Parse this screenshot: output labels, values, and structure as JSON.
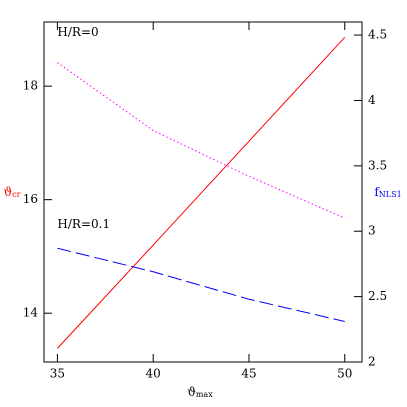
{
  "chart_data": {
    "type": "line",
    "x": [
      35,
      40,
      45,
      50
    ],
    "xlim": [
      34.3,
      50.9
    ],
    "xticks": [
      35,
      40,
      45,
      50
    ],
    "ylim": [
      13.14,
      19.13
    ],
    "yticks": [
      14,
      16,
      18
    ],
    "y2lim": [
      2.0,
      4.6
    ],
    "y2ticks": [
      2,
      2.5,
      3,
      3.5,
      4,
      4.5
    ],
    "xlabel": {
      "symbol": "ϑ",
      "subscript": "max"
    },
    "ylabel": {
      "symbol": "ϑ",
      "subscript": "cr",
      "color": "#ff0000"
    },
    "y2label": {
      "symbol": "f",
      "subscript": "NLS1",
      "color": "#0000ff"
    },
    "series": [
      {
        "color": "#ff0000",
        "dash": "none",
        "values": [
          13.38,
          15.2,
          17.03,
          18.86
        ]
      },
      {
        "color": "#ff00ff",
        "dash": "1.5 2.5",
        "axis": "y2",
        "values": [
          4.29,
          3.77,
          3.42,
          3.1
        ]
      },
      {
        "color": "#0000ff",
        "dash": "14 5",
        "axis": "y2",
        "values": [
          2.87,
          2.69,
          2.48,
          2.31
        ]
      }
    ],
    "annotations": [
      {
        "text": "H/R=0",
        "x": 35,
        "y": 4.52
      },
      {
        "text": "H/R=0.1",
        "x": 35,
        "y": 3.05
      }
    ]
  }
}
